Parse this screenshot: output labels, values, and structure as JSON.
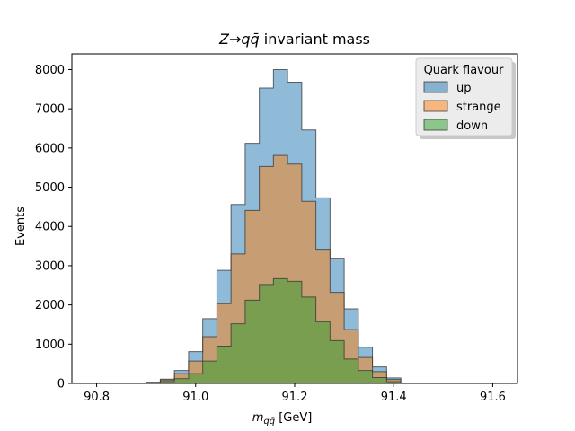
{
  "chart_data": {
    "type": "bar",
    "subtype": "stepfilled-histogram",
    "title": "Z→qq̄ invariant mass",
    "title_parts": {
      "lhs": "Z",
      "arrow": "→",
      "rhs": "qq̄",
      "rest": " invariant mass"
    },
    "xlabel": "m_{qq̄} [GeV]",
    "xlabel_parts": {
      "sym": "m",
      "sub": "qq̄",
      "unit": " [GeV]"
    },
    "ylabel": "Events",
    "xlim": [
      90.75,
      91.65
    ],
    "ylim": [
      0,
      8400
    ],
    "x_ticks": [
      90.8,
      91.0,
      91.2,
      91.4,
      91.6
    ],
    "x_tick_labels": [
      "90.8",
      "91.0",
      "91.2",
      "91.4",
      "91.6"
    ],
    "y_ticks": [
      0,
      1000,
      2000,
      3000,
      4000,
      5000,
      6000,
      7000,
      8000
    ],
    "y_tick_labels": [
      "0",
      "1000",
      "2000",
      "3000",
      "4000",
      "5000",
      "6000",
      "7000",
      "8000"
    ],
    "grid": false,
    "bin_edges": [
      90.9,
      90.9286,
      90.9571,
      90.9857,
      91.0143,
      91.0429,
      91.0714,
      91.1,
      91.1286,
      91.1571,
      91.1857,
      91.2143,
      91.2429,
      91.2714,
      91.3,
      91.3286,
      91.3571,
      91.3857,
      91.4143,
      91.4429,
      91.4714
    ],
    "series": [
      {
        "name": "up",
        "color": "#1f77b4",
        "values": [
          30,
          110,
          330,
          810,
          1650,
          2880,
          4560,
          6120,
          7530,
          8000,
          7680,
          6460,
          4730,
          3190,
          1900,
          920,
          420,
          140,
          0,
          0
        ]
      },
      {
        "name": "strange",
        "color": "#ff7f0e",
        "values": [
          25,
          90,
          250,
          570,
          1190,
          2030,
          3300,
          4410,
          5530,
          5810,
          5590,
          4640,
          3420,
          2320,
          1370,
          660,
          300,
          100,
          0,
          0
        ]
      },
      {
        "name": "down",
        "color": "#2ca02c",
        "values": [
          20,
          50,
          120,
          250,
          570,
          950,
          1520,
          2120,
          2520,
          2670,
          2600,
          2200,
          1570,
          1090,
          620,
          330,
          150,
          45,
          0,
          0
        ]
      }
    ],
    "legend": {
      "title": "Quark flavour",
      "location": "upper right",
      "shadow": true
    }
  }
}
